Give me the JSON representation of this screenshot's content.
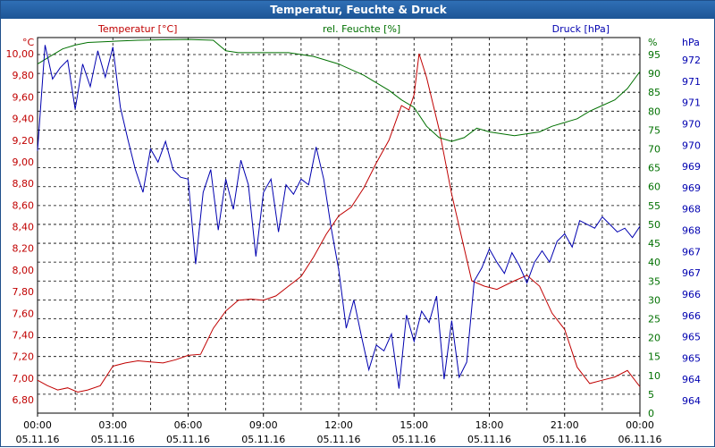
{
  "window": {
    "title": "Temperatur, Feuchte & Druck"
  },
  "colors": {
    "temperature": "#c00000",
    "humidity": "#007000",
    "pressure": "#0000b0",
    "grid": "#000000",
    "title_bar": "#1f5a9c"
  },
  "chart_data": {
    "type": "line",
    "grid": true,
    "legend": "series labels above plot (left, center, right)",
    "x_ticks": [
      {
        "time": "00:00",
        "date": "05.11.16"
      },
      {
        "time": "03:00",
        "date": "05.11.16"
      },
      {
        "time": "06:00",
        "date": "05.11.16"
      },
      {
        "time": "09:00",
        "date": "05.11.16"
      },
      {
        "time": "12:00",
        "date": "05.11.16"
      },
      {
        "time": "15:00",
        "date": "05.11.16"
      },
      {
        "time": "18:00",
        "date": "05.11.16"
      },
      {
        "time": "21:00",
        "date": "05.11.16"
      },
      {
        "time": "00:00",
        "date": "06.11.16"
      }
    ],
    "x_range_hours": [
      0,
      24
    ],
    "axes": {
      "temperature": {
        "label": "Temperatur [°C]",
        "unit": "°C",
        "ylim": [
          6.66,
          10.0
        ],
        "ticks": [
          "10,00",
          "9,80",
          "9,60",
          "9,40",
          "9,20",
          "9,00",
          "8,80",
          "8,60",
          "8,40",
          "8,20",
          "8,00",
          "7,80",
          "7,60",
          "7,40",
          "7,20",
          "7,00",
          "6,80"
        ],
        "tick_values": [
          10.0,
          9.8,
          9.6,
          9.4,
          9.2,
          9.0,
          8.8,
          8.6,
          8.4,
          8.2,
          8.0,
          7.8,
          7.6,
          7.4,
          7.2,
          7.0,
          6.8
        ]
      },
      "humidity": {
        "label": "rel. Feuchte [%]",
        "unit": "%",
        "ylim": [
          0,
          95
        ],
        "ticks": [
          "95",
          "90",
          "85",
          "80",
          "75",
          "70",
          "65",
          "60",
          "55",
          "50",
          "45",
          "40",
          "35",
          "30",
          "25",
          "20",
          "15",
          "10",
          "5",
          "0"
        ],
        "tick_values": [
          95,
          90,
          85,
          80,
          75,
          70,
          65,
          60,
          55,
          50,
          45,
          40,
          35,
          30,
          25,
          20,
          15,
          10,
          5,
          0
        ]
      },
      "pressure": {
        "label": "Druck [hPa]",
        "unit": "hPa",
        "ticks": [
          "972",
          "971",
          "971",
          "970",
          "970",
          "969",
          "969",
          "968",
          "968",
          "967",
          "967",
          "966",
          "966",
          "965",
          "965",
          "964",
          "964"
        ]
      }
    },
    "series": [
      {
        "name": "Temperatur [°C]",
        "axis": "temperature",
        "points": [
          [
            0,
            6.98
          ],
          [
            0.4,
            6.93
          ],
          [
            0.8,
            6.89
          ],
          [
            1.2,
            6.91
          ],
          [
            1.6,
            6.87
          ],
          [
            2.0,
            6.89
          ],
          [
            2.5,
            6.93
          ],
          [
            3.0,
            7.11
          ],
          [
            3.5,
            7.14
          ],
          [
            4.0,
            7.16
          ],
          [
            4.5,
            7.15
          ],
          [
            5.0,
            7.14
          ],
          [
            5.5,
            7.17
          ],
          [
            6.0,
            7.21
          ],
          [
            6.5,
            7.22
          ],
          [
            7.0,
            7.46
          ],
          [
            7.5,
            7.62
          ],
          [
            8.0,
            7.72
          ],
          [
            8.5,
            7.73
          ],
          [
            9.0,
            7.72
          ],
          [
            9.5,
            7.76
          ],
          [
            10.0,
            7.85
          ],
          [
            10.5,
            7.94
          ],
          [
            11.0,
            8.12
          ],
          [
            11.5,
            8.33
          ],
          [
            12.0,
            8.5
          ],
          [
            12.5,
            8.58
          ],
          [
            13.0,
            8.76
          ],
          [
            13.5,
            8.99
          ],
          [
            14.0,
            9.2
          ],
          [
            14.5,
            9.52
          ],
          [
            14.8,
            9.48
          ],
          [
            15.0,
            9.62
          ],
          [
            15.2,
            10.0
          ],
          [
            15.5,
            9.78
          ],
          [
            16.0,
            9.3
          ],
          [
            16.5,
            8.7
          ],
          [
            17.0,
            8.2
          ],
          [
            17.3,
            7.9
          ],
          [
            17.8,
            7.85
          ],
          [
            18.3,
            7.82
          ],
          [
            19.0,
            7.9
          ],
          [
            19.5,
            7.95
          ],
          [
            20.0,
            7.85
          ],
          [
            20.5,
            7.6
          ],
          [
            21.0,
            7.45
          ],
          [
            21.5,
            7.1
          ],
          [
            22.0,
            6.95
          ],
          [
            22.5,
            6.98
          ],
          [
            23.0,
            7.01
          ],
          [
            23.5,
            7.07
          ],
          [
            24.0,
            6.92
          ]
        ]
      },
      {
        "name": "rel. Feuchte [%]",
        "axis": "humidity",
        "points": [
          [
            0,
            92.5
          ],
          [
            0.5,
            94.5
          ],
          [
            1.0,
            96.5
          ],
          [
            1.5,
            97.5
          ],
          [
            2.0,
            98.2
          ],
          [
            3.0,
            98.5
          ],
          [
            4.0,
            98.8
          ],
          [
            5.0,
            98.9
          ],
          [
            6.0,
            99
          ],
          [
            7.0,
            98.8
          ],
          [
            7.5,
            96
          ],
          [
            8.0,
            95.5
          ],
          [
            9.0,
            95.5
          ],
          [
            10.0,
            95.5
          ],
          [
            11.0,
            94.5
          ],
          [
            12.0,
            92.5
          ],
          [
            13.0,
            89.5
          ],
          [
            14.0,
            85.5
          ],
          [
            14.5,
            83
          ],
          [
            15.0,
            81
          ],
          [
            15.5,
            76
          ],
          [
            16.0,
            73
          ],
          [
            16.5,
            72
          ],
          [
            17.0,
            73
          ],
          [
            17.5,
            75.5
          ],
          [
            18.0,
            74.5
          ],
          [
            18.5,
            74
          ],
          [
            19.0,
            73.5
          ],
          [
            19.5,
            74
          ],
          [
            20.0,
            74.5
          ],
          [
            20.5,
            76
          ],
          [
            21.0,
            77
          ],
          [
            21.5,
            78
          ],
          [
            22.0,
            80
          ],
          [
            22.5,
            81.5
          ],
          [
            23.0,
            83
          ],
          [
            23.5,
            86
          ],
          [
            24.0,
            90.5
          ]
        ]
      },
      {
        "name": "Druck [hPa]",
        "axis": "pressure",
        "points": [
          [
            0,
            69.5
          ],
          [
            0.3,
            97.5
          ],
          [
            0.6,
            88.5
          ],
          [
            0.9,
            91.5
          ],
          [
            1.2,
            93.5
          ],
          [
            1.5,
            80.5
          ],
          [
            1.8,
            92.5
          ],
          [
            2.1,
            86.5
          ],
          [
            2.4,
            96
          ],
          [
            2.7,
            89
          ],
          [
            3.0,
            97
          ],
          [
            3.3,
            81
          ],
          [
            3.6,
            72.5
          ],
          [
            3.9,
            64.5
          ],
          [
            4.2,
            58.5
          ],
          [
            4.5,
            70
          ],
          [
            4.8,
            66.5
          ],
          [
            5.1,
            72
          ],
          [
            5.4,
            64.5
          ],
          [
            5.7,
            62.5
          ],
          [
            6.0,
            62
          ],
          [
            6.3,
            39.5
          ],
          [
            6.6,
            58.5
          ],
          [
            6.9,
            64.5
          ],
          [
            7.2,
            48.5
          ],
          [
            7.5,
            62
          ],
          [
            7.8,
            54
          ],
          [
            8.1,
            67
          ],
          [
            8.4,
            60.5
          ],
          [
            8.7,
            41.5
          ],
          [
            9.0,
            58.5
          ],
          [
            9.3,
            62
          ],
          [
            9.6,
            48
          ],
          [
            9.9,
            60.5
          ],
          [
            10.2,
            58
          ],
          [
            10.5,
            62
          ],
          [
            10.8,
            60.5
          ],
          [
            11.1,
            70.5
          ],
          [
            11.4,
            62
          ],
          [
            11.7,
            49
          ],
          [
            12.0,
            38
          ],
          [
            12.3,
            22.5
          ],
          [
            12.6,
            30
          ],
          [
            12.9,
            20.5
          ],
          [
            13.2,
            11.5
          ],
          [
            13.5,
            18
          ],
          [
            13.8,
            16.5
          ],
          [
            14.1,
            21
          ],
          [
            14.4,
            6.5
          ],
          [
            14.7,
            26
          ],
          [
            15.0,
            19
          ],
          [
            15.3,
            27
          ],
          [
            15.6,
            24
          ],
          [
            15.9,
            31
          ],
          [
            16.2,
            9
          ],
          [
            16.5,
            24.5
          ],
          [
            16.8,
            9.5
          ],
          [
            17.1,
            13.5
          ],
          [
            17.4,
            35
          ],
          [
            17.7,
            38.5
          ],
          [
            18.0,
            43.5
          ],
          [
            18.3,
            40
          ],
          [
            18.6,
            37
          ],
          [
            18.9,
            42.5
          ],
          [
            19.2,
            39
          ],
          [
            19.5,
            34.5
          ],
          [
            19.8,
            40
          ],
          [
            20.1,
            43
          ],
          [
            20.4,
            40
          ],
          [
            20.7,
            45.5
          ],
          [
            21.0,
            47.5
          ],
          [
            21.3,
            44
          ],
          [
            21.6,
            51
          ],
          [
            21.9,
            50
          ],
          [
            22.2,
            49
          ],
          [
            22.5,
            52
          ],
          [
            22.8,
            50
          ],
          [
            23.1,
            48
          ],
          [
            23.4,
            49
          ],
          [
            23.7,
            46.5
          ],
          [
            24.0,
            49.5
          ]
        ]
      }
    ]
  }
}
